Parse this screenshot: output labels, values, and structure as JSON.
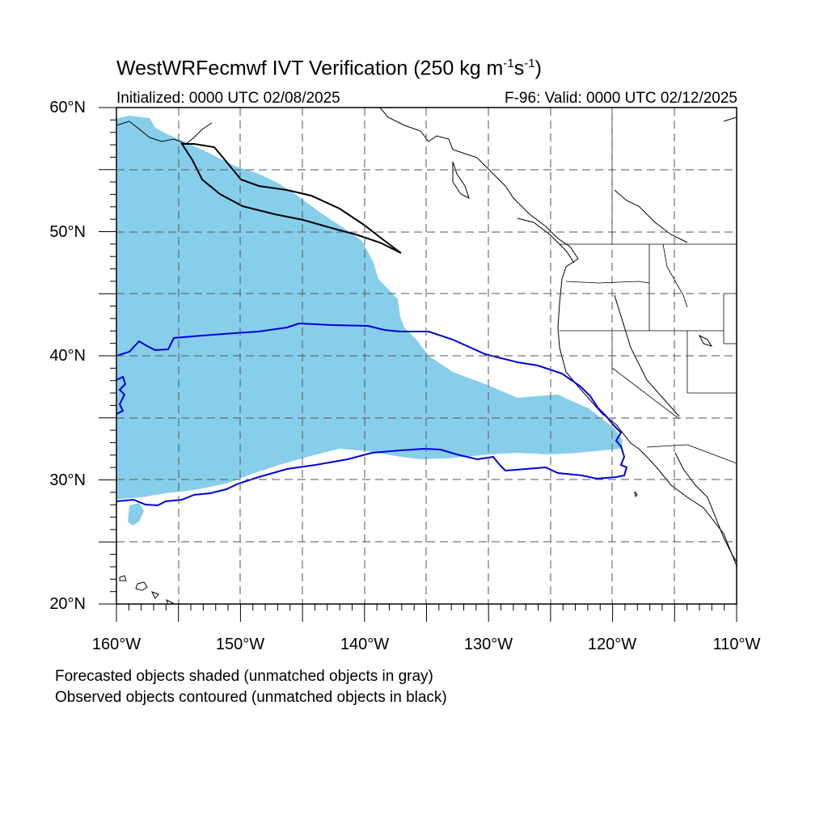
{
  "title": {
    "main": "WestWRFecmwf IVT Verification",
    "units_prefix": " (250 kg m",
    "units_exp1": "-1",
    "units_mid": "s",
    "units_exp2": "-1",
    "units_suffix": ")"
  },
  "subtitle_left": "Initialized: 0000 UTC 02/08/2025",
  "subtitle_right": "F-96: Valid: 0000 UTC 02/12/2025",
  "axes": {
    "lat_labels": [
      "60°N",
      "50°N",
      "40°N",
      "30°N",
      "20°N"
    ],
    "lon_labels": [
      "160°W",
      "150°W",
      "140°W",
      "130°W",
      "120°W",
      "110°W"
    ],
    "lon_range": [
      -160,
      -110
    ],
    "lat_range": [
      20,
      60
    ]
  },
  "footnotes": [
    "Forecasted objects shaded (unmatched objects in gray)",
    "Observed objects contoured (unmatched objects in black)"
  ],
  "colors": {
    "forecast_fill": "#87ceeb",
    "observed_matched": "#0000dd",
    "observed_unmatched": "#000000",
    "grid": "#555555"
  }
}
